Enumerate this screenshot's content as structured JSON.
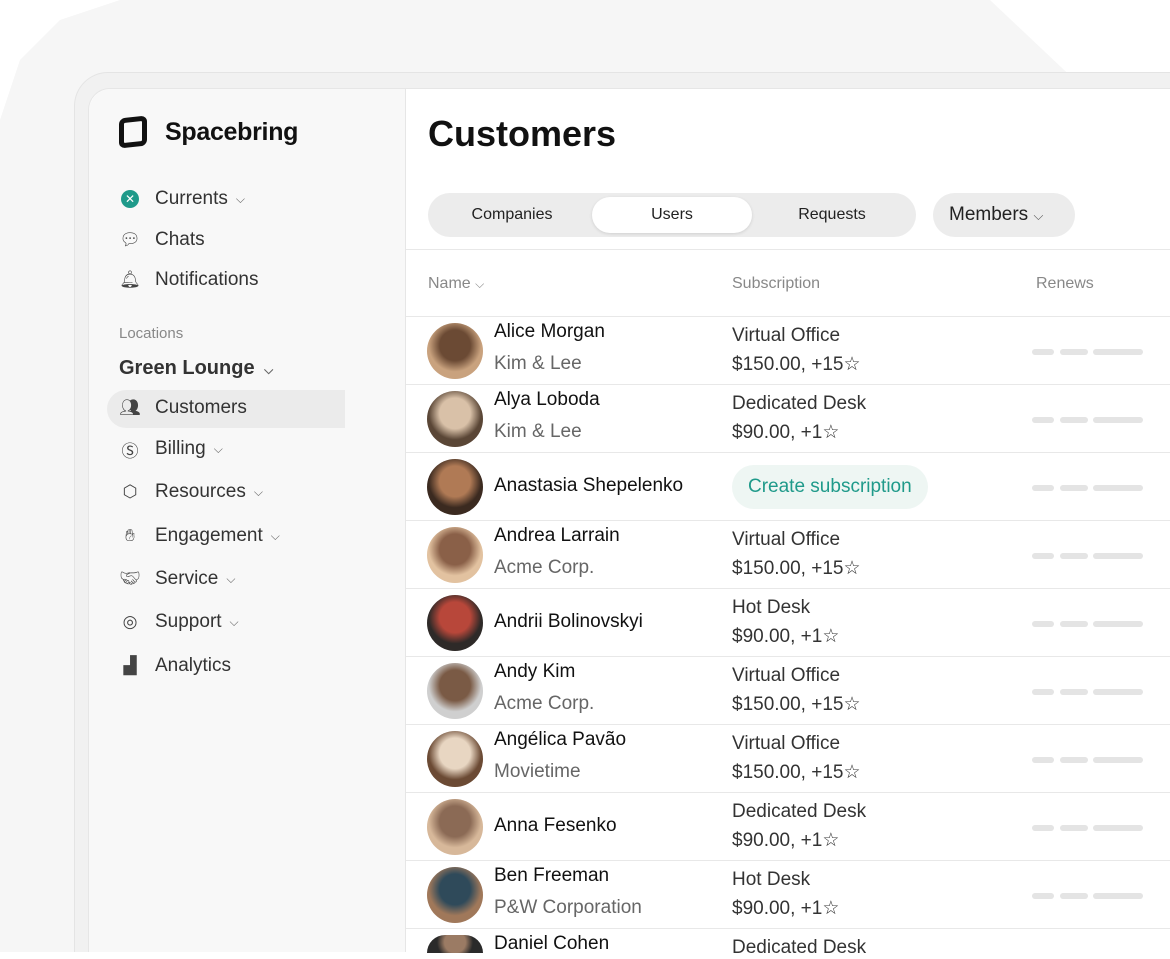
{
  "brand": {
    "name": "Spacebring"
  },
  "sidebar": {
    "top": [
      {
        "label": "Currents",
        "icon": "currents-icon",
        "chevron": true
      },
      {
        "label": "Chats",
        "icon": "chat-icon"
      },
      {
        "label": "Notifications",
        "icon": "bell-icon"
      }
    ],
    "locations_label": "Locations",
    "location": "Green Lounge",
    "items": [
      {
        "label": "Customers",
        "icon": "users-icon",
        "active": true
      },
      {
        "label": "Billing",
        "icon": "dollar-icon",
        "chevron": true
      },
      {
        "label": "Resources",
        "icon": "box-icon",
        "chevron": true
      },
      {
        "label": "Engagement",
        "icon": "wave-hand-icon",
        "chevron": true
      },
      {
        "label": "Service",
        "icon": "handshake-icon",
        "chevron": true
      },
      {
        "label": "Support",
        "icon": "lifebuoy-icon",
        "chevron": true
      },
      {
        "label": "Analytics",
        "icon": "bar-chart-icon"
      }
    ]
  },
  "main": {
    "title": "Customers",
    "tabs": [
      "Companies",
      "Users",
      "Requests"
    ],
    "active_tab": "Users",
    "filter": "Members",
    "columns": {
      "name": "Name",
      "subscription": "Subscription",
      "renews": "Renews"
    },
    "accent": "#1f9a8a",
    "rows": [
      {
        "name": "Alice Morgan",
        "company": "Kim & Lee",
        "plan": "Virtual Office",
        "price": "$150.00, +15☆"
      },
      {
        "name": "Alya Loboda",
        "company": "Kim & Lee",
        "plan": "Dedicated Desk",
        "price": "$90.00, +1☆"
      },
      {
        "name": "Anastasia Shepelenko",
        "company": "",
        "action": "Create subscription"
      },
      {
        "name": "Andrea Larrain",
        "company": "Acme Corp.",
        "plan": "Virtual Office",
        "price": "$150.00, +15☆"
      },
      {
        "name": "Andrii Bolinovskyi",
        "company": "",
        "plan": "Hot Desk",
        "price": "$90.00, +1☆"
      },
      {
        "name": "Andy Kim",
        "company": "Acme Corp.",
        "plan": "Virtual Office",
        "price": "$150.00, +15☆"
      },
      {
        "name": "Angélica Pavão",
        "company": "Movietime",
        "plan": "Virtual Office",
        "price": "$150.00, +15☆"
      },
      {
        "name": "Anna Fesenko",
        "company": "",
        "plan": "Dedicated Desk",
        "price": "$90.00, +1☆"
      },
      {
        "name": "Ben Freeman",
        "company": "P&W Corporation",
        "plan": "Hot Desk",
        "price": "$90.00, +1☆"
      },
      {
        "name": "Daniel Cohen",
        "company": "",
        "plan": "Dedicated Desk",
        "price": ""
      }
    ]
  }
}
